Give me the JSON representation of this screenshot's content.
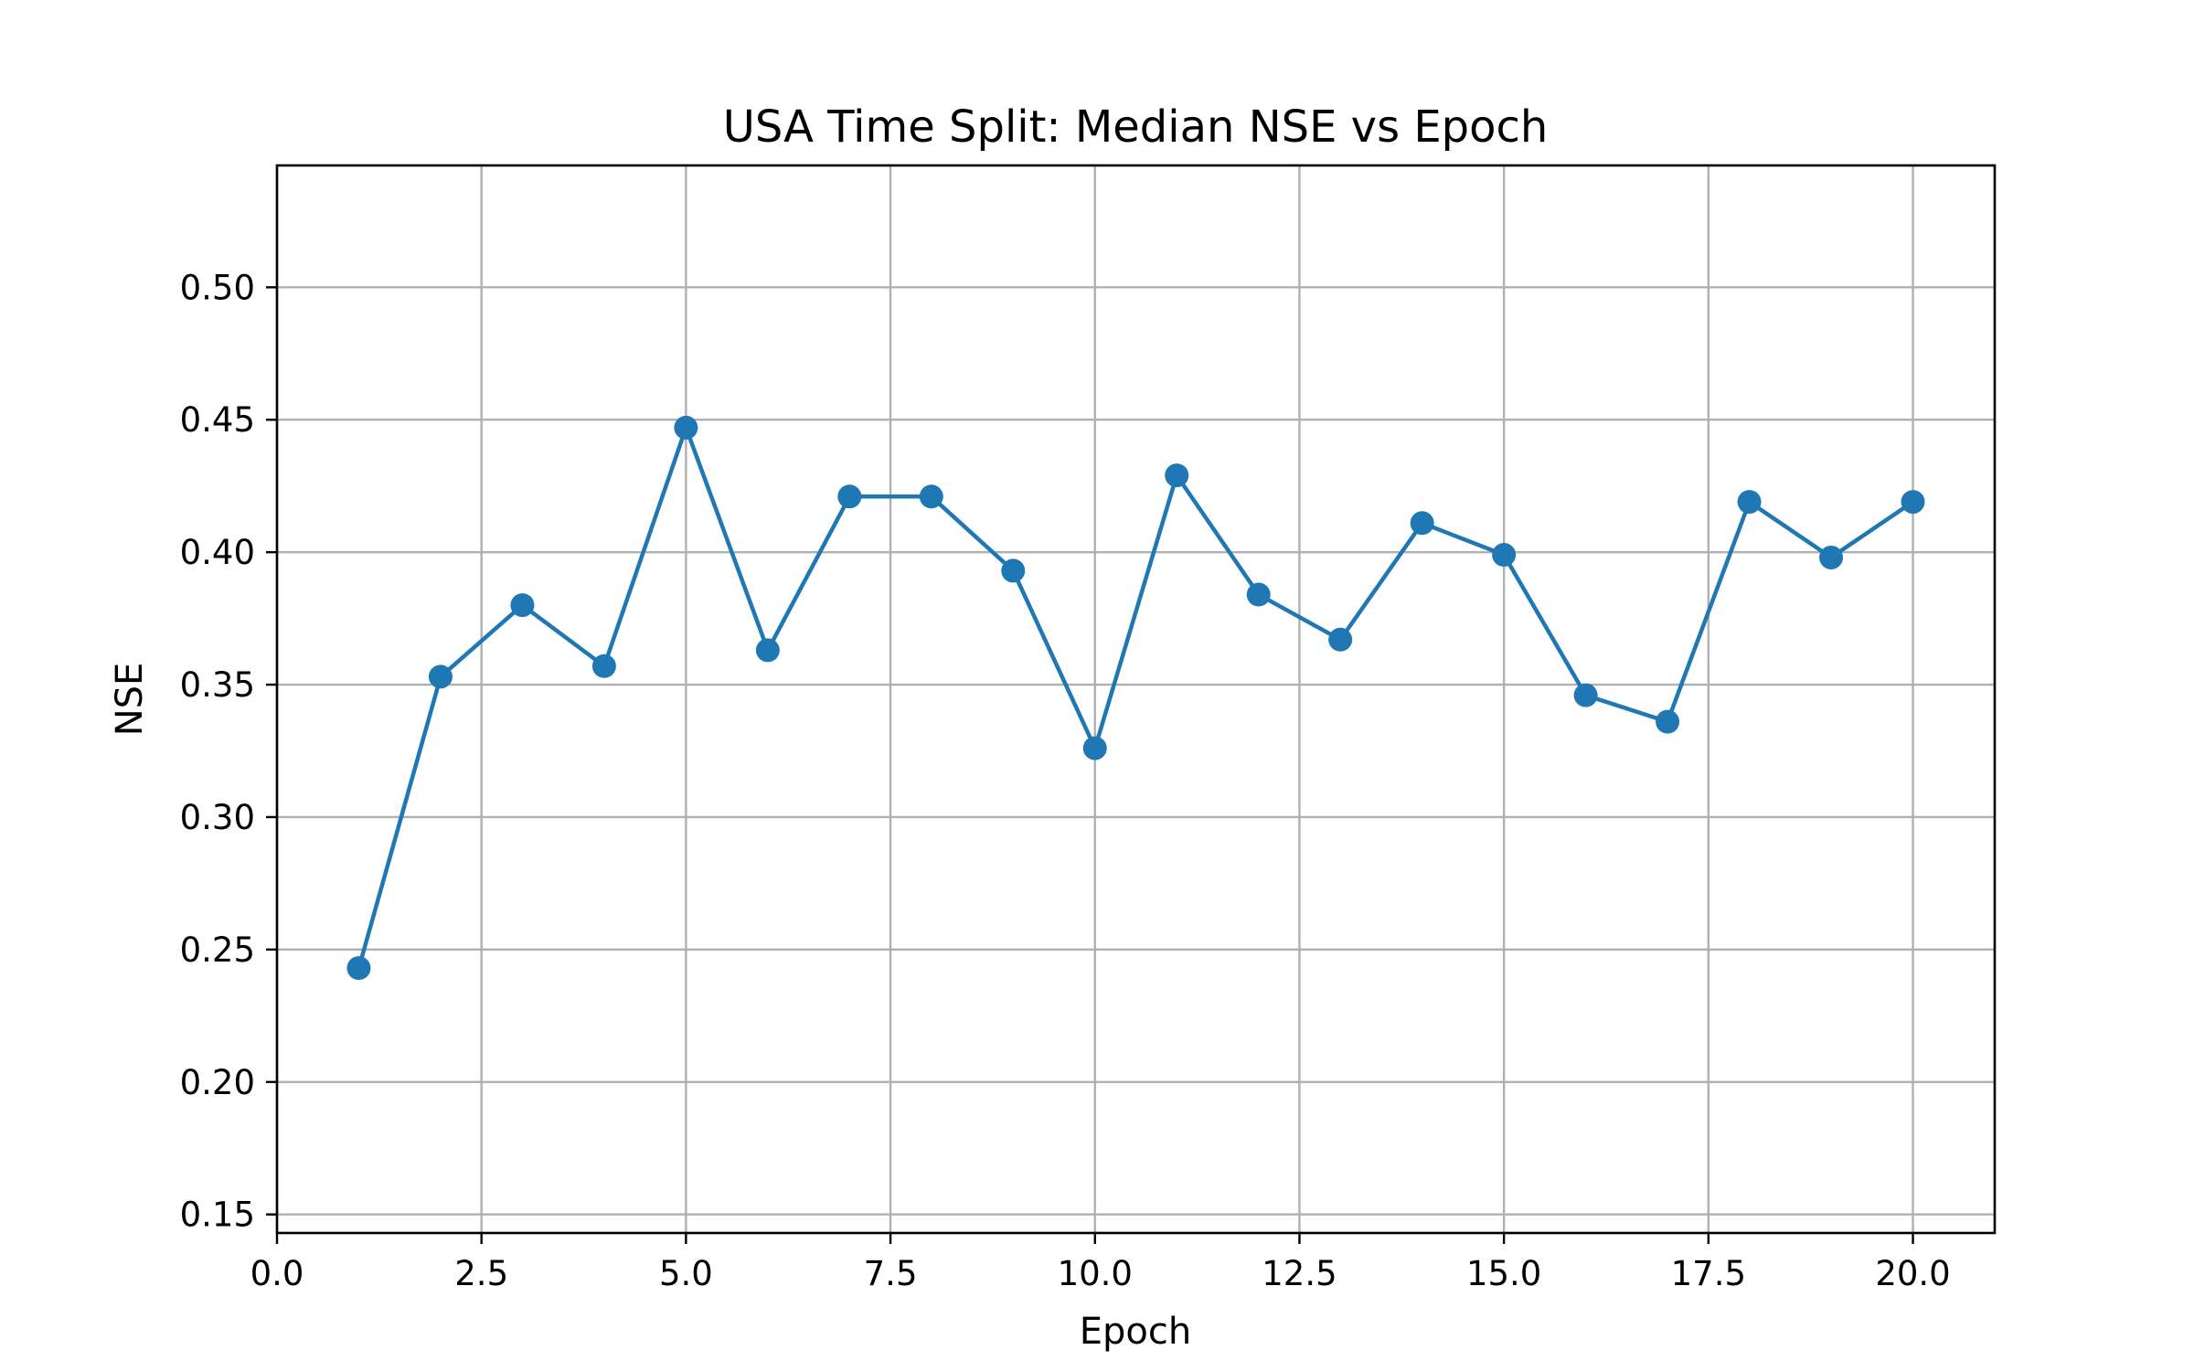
{
  "chart_data": {
    "type": "line",
    "title": "USA Time Split: Median NSE vs Epoch",
    "xlabel": "Epoch",
    "ylabel": "NSE",
    "xlim": [
      0,
      21
    ],
    "ylim": [
      0.143,
      0.546
    ],
    "xticks": [
      0.0,
      2.5,
      5.0,
      7.5,
      10.0,
      12.5,
      15.0,
      17.5,
      20.0
    ],
    "xtick_labels": [
      "0.0",
      "2.5",
      "5.0",
      "7.5",
      "10.0",
      "12.5",
      "15.0",
      "17.5",
      "20.0"
    ],
    "yticks": [
      0.15,
      0.2,
      0.25,
      0.3,
      0.35,
      0.4,
      0.45,
      0.5
    ],
    "ytick_labels": [
      "0.15",
      "0.20",
      "0.25",
      "0.30",
      "0.35",
      "0.40",
      "0.45",
      "0.50"
    ],
    "grid": true,
    "series": [
      {
        "color": "#1f77b4",
        "marker": "circle",
        "x": [
          1,
          2,
          3,
          4,
          5,
          6,
          7,
          8,
          9,
          10,
          11,
          12,
          13,
          14,
          15,
          16,
          17,
          18,
          19,
          20
        ],
        "values": [
          0.243,
          0.353,
          0.38,
          0.357,
          0.447,
          0.363,
          0.421,
          0.421,
          0.393,
          0.326,
          0.429,
          0.384,
          0.367,
          0.411,
          0.399,
          0.346,
          0.336,
          0.419,
          0.398,
          0.419
        ]
      }
    ]
  }
}
